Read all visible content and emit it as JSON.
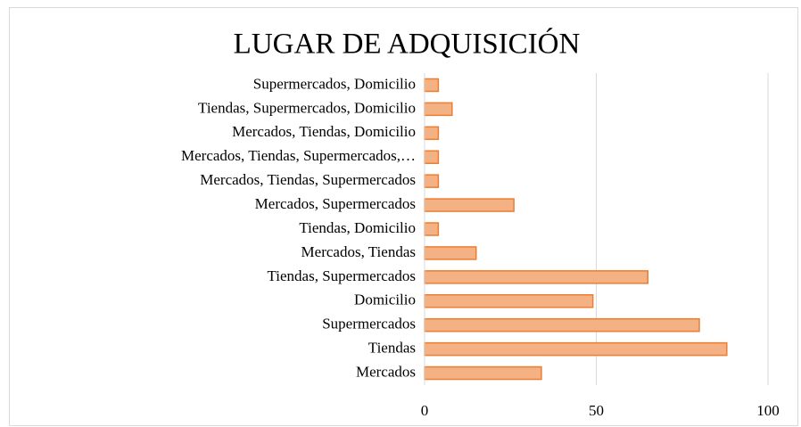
{
  "chart_data": {
    "type": "hbar",
    "title": "LUGAR DE ADQUISICIÓN",
    "categories": [
      "Mercados",
      "Tiendas",
      "Supermercados",
      "Domicilio",
      "Tiendas, Supermercados",
      "Mercados, Tiendas",
      "Tiendas, Domicilio",
      "Mercados, Supermercados",
      "Mercados, Tiendas, Supermercados",
      "Mercados, Tiendas, Supermercados,…",
      "Mercados, Tiendas, Domicilio",
      "Tiendas, Supermercados, Domicilio",
      "Supermercados, Domicilio"
    ],
    "values": [
      34,
      88,
      80,
      49,
      65,
      15,
      4,
      26,
      4,
      4,
      4,
      8,
      4
    ],
    "color": "#f4b183",
    "edge_color": "#ed7d31",
    "xlim": [
      0,
      100
    ],
    "xticks": [
      0,
      50,
      100
    ],
    "grid": true
  }
}
